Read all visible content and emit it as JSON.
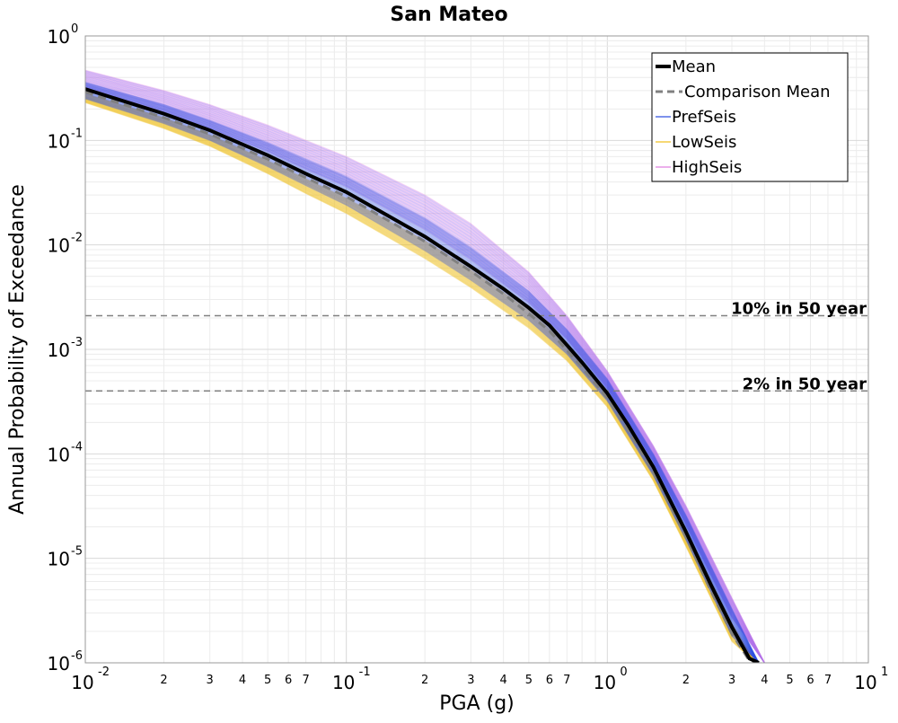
{
  "chart_data": {
    "type": "line",
    "title": "San Mateo",
    "xlabel": "PGA (g)",
    "ylabel": "Annual Probability of Exceedance",
    "xscale": "log",
    "yscale": "log",
    "xlim": [
      0.01,
      10
    ],
    "ylim": [
      1e-06,
      1
    ],
    "grid": true,
    "legend_position": "top-right",
    "x_ticks_major": [
      {
        "value": 0.01,
        "base": "10",
        "exp": "-2"
      },
      {
        "value": 0.1,
        "base": "10",
        "exp": "-1"
      },
      {
        "value": 1,
        "base": "10",
        "exp": "0"
      },
      {
        "value": 10,
        "base": "10",
        "exp": "1"
      }
    ],
    "x_ticks_minor": [
      {
        "value": 0.02,
        "label": "2"
      },
      {
        "value": 0.03,
        "label": "3"
      },
      {
        "value": 0.04,
        "label": "4"
      },
      {
        "value": 0.05,
        "label": "5"
      },
      {
        "value": 0.06,
        "label": "6"
      },
      {
        "value": 0.07,
        "label": "7"
      },
      {
        "value": 0.2,
        "label": "2"
      },
      {
        "value": 0.3,
        "label": "3"
      },
      {
        "value": 0.4,
        "label": "4"
      },
      {
        "value": 0.5,
        "label": "5"
      },
      {
        "value": 0.6,
        "label": "6"
      },
      {
        "value": 0.7,
        "label": "7"
      },
      {
        "value": 2,
        "label": "2"
      },
      {
        "value": 3,
        "label": "3"
      },
      {
        "value": 4,
        "label": "4"
      },
      {
        "value": 5,
        "label": "5"
      },
      {
        "value": 6,
        "label": "6"
      },
      {
        "value": 7,
        "label": "7"
      }
    ],
    "y_ticks_major": [
      {
        "value": 1,
        "base": "10",
        "exp": "0"
      },
      {
        "value": 0.1,
        "base": "10",
        "exp": "-1"
      },
      {
        "value": 0.01,
        "base": "10",
        "exp": "-2"
      },
      {
        "value": 0.001,
        "base": "10",
        "exp": "-3"
      },
      {
        "value": 0.0001,
        "base": "10",
        "exp": "-4"
      },
      {
        "value": 1e-05,
        "base": "10",
        "exp": "-5"
      },
      {
        "value": 1e-06,
        "base": "10",
        "exp": "-6"
      }
    ],
    "reference_lines": [
      {
        "label": "10% in 50 year",
        "y": 0.0021,
        "color": "#808080"
      },
      {
        "label": "2% in 50 year",
        "y": 0.0004,
        "color": "#808080"
      }
    ],
    "series": [
      {
        "name": "Mean",
        "color": "#000000",
        "style": "solid-thick",
        "x": [
          0.01,
          0.02,
          0.03,
          0.05,
          0.07,
          0.1,
          0.2,
          0.3,
          0.4,
          0.5,
          0.6,
          0.7,
          0.8,
          1.0,
          1.2,
          1.5,
          2.0,
          2.5,
          3.0,
          3.5,
          3.8
        ],
        "y": [
          0.31,
          0.18,
          0.125,
          0.072,
          0.048,
          0.032,
          0.012,
          0.0062,
          0.0038,
          0.0025,
          0.0017,
          0.0011,
          0.00075,
          0.00038,
          0.00019,
          7.5e-05,
          1.8e-05,
          5.5e-06,
          2.2e-06,
          1.1e-06,
          1e-06
        ]
      },
      {
        "name": "Comparison Mean",
        "color": "#808080",
        "style": "dashed",
        "x": [
          0.01,
          0.02,
          0.03,
          0.05,
          0.07,
          0.1,
          0.2,
          0.3,
          0.4,
          0.5,
          0.6,
          0.7,
          0.8,
          1.0,
          1.2,
          1.5,
          2.0,
          2.5,
          3.0,
          3.5,
          3.7
        ],
        "y": [
          0.29,
          0.165,
          0.115,
          0.066,
          0.044,
          0.029,
          0.0108,
          0.0056,
          0.0034,
          0.0022,
          0.0015,
          0.00098,
          0.00067,
          0.00034,
          0.00017,
          6.7e-05,
          1.6e-05,
          4.8e-06,
          1.9e-06,
          1.05e-06,
          1e-06
        ]
      },
      {
        "name": "PrefSeis",
        "color": "#3050e0",
        "style": "band",
        "x": [
          0.01,
          0.02,
          0.03,
          0.05,
          0.07,
          0.1,
          0.2,
          0.3,
          0.5,
          0.7,
          1.0,
          1.5,
          2.0,
          3.0,
          3.8
        ],
        "y_low": [
          0.25,
          0.145,
          0.1,
          0.056,
          0.037,
          0.024,
          0.0088,
          0.0046,
          0.0019,
          0.0009,
          0.00032,
          6.2e-05,
          1.5e-05,
          1.8e-06,
          1e-06
        ],
        "y_high": [
          0.36,
          0.22,
          0.155,
          0.095,
          0.066,
          0.045,
          0.018,
          0.0094,
          0.0036,
          0.00155,
          0.00052,
          0.0001,
          2.6e-05,
          3.3e-06,
          1e-06
        ]
      },
      {
        "name": "LowSeis",
        "color": "#f0c020",
        "style": "band",
        "x": [
          0.01,
          0.02,
          0.03,
          0.05,
          0.07,
          0.1,
          0.2,
          0.3,
          0.5,
          0.7,
          1.0,
          1.5,
          2.0,
          3.0,
          3.7
        ],
        "y_low": [
          0.23,
          0.13,
          0.088,
          0.048,
          0.031,
          0.02,
          0.0074,
          0.0039,
          0.0016,
          0.00078,
          0.00028,
          5.5e-05,
          1.3e-05,
          1.6e-06,
          1e-06
        ],
        "y_high": [
          0.28,
          0.165,
          0.113,
          0.064,
          0.043,
          0.028,
          0.011,
          0.0058,
          0.0024,
          0.0011,
          0.0004,
          7.8e-05,
          1.9e-05,
          2.4e-06,
          1e-06
        ]
      },
      {
        "name": "HighSeis",
        "color": "#e080e0",
        "style": "band",
        "x": [
          0.01,
          0.02,
          0.03,
          0.05,
          0.07,
          0.1,
          0.2,
          0.3,
          0.5,
          0.7,
          1.0,
          1.5,
          2.0,
          3.0,
          4.0
        ],
        "y_low": [
          0.3,
          0.185,
          0.13,
          0.078,
          0.053,
          0.036,
          0.014,
          0.0072,
          0.0028,
          0.00125,
          0.00042,
          8.4e-05,
          2.1e-05,
          2.7e-06,
          1e-06
        ],
        "y_high": [
          0.47,
          0.3,
          0.22,
          0.14,
          0.1,
          0.07,
          0.03,
          0.016,
          0.0055,
          0.0021,
          0.00062,
          0.00012,
          3.2e-05,
          4.2e-06,
          1e-06
        ]
      }
    ]
  }
}
